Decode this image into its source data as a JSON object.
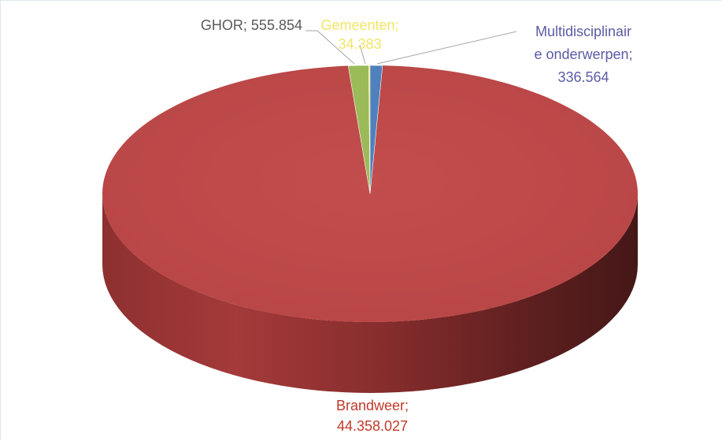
{
  "chart_data": {
    "type": "pie",
    "style": "3d",
    "title": "",
    "slices": [
      {
        "category": "Brandweer",
        "value": "44.358.027",
        "amount": 44358027,
        "color": "#bf4b4b",
        "label_color": "#c0392b",
        "label_lines": [
          "Brandweer;",
          "44.358.027"
        ]
      },
      {
        "category": "GHOR",
        "value": "555.854",
        "amount": 555854,
        "color": "#9bbb59",
        "label_color": "#595959",
        "label_lines": [
          "GHOR; 555.854"
        ]
      },
      {
        "category": "Gemeenten",
        "value": "34.383",
        "amount": 34383,
        "color": "#e6df5a",
        "label_color": "#f2e565",
        "label_lines": [
          "Gemeenten;",
          "34.383"
        ]
      },
      {
        "category": "Multidisciplinaire onderwerpen",
        "value": "336.564",
        "amount": 336564,
        "color": "#4f81bd",
        "label_color": "#5b5ba5",
        "label_lines": [
          "Multidisciplinair",
          "e onderwerpen;",
          "336.564"
        ]
      }
    ]
  }
}
